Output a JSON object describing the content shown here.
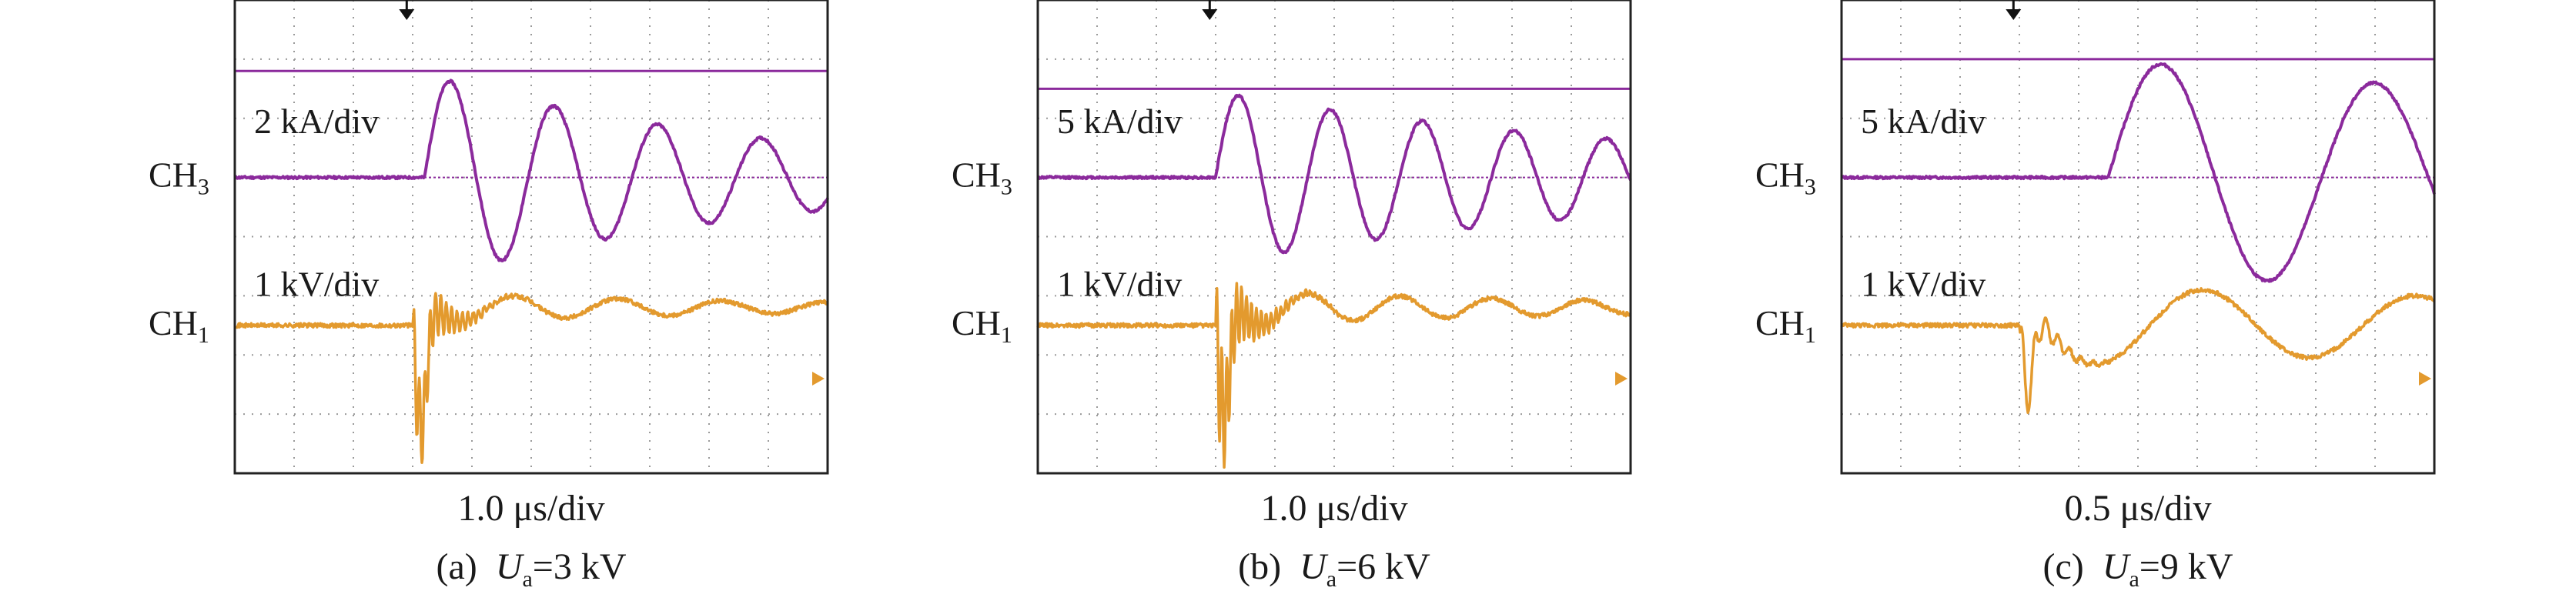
{
  "colors": {
    "ch3": "#8b2a9c",
    "ch1": "#e39a2e",
    "grid": "#9a9a9a",
    "frame": "#222222"
  },
  "chart_data": [
    {
      "type": "line",
      "panel_label": "(a)",
      "caption_var": "U",
      "caption_sub": "a",
      "caption_value": "=3 kV",
      "time_scale": "1.0 μs/div",
      "grid_divisions": {
        "x": 10,
        "y": 8
      },
      "grid": true,
      "series": [
        {
          "name": "CH",
          "name_sub": "3",
          "scale_label": "2 kA/div",
          "baseline_div": 5.0,
          "start_div": 3.2,
          "settled_div": 0.0,
          "first_peak_div": 1.75,
          "period_div": 1.75,
          "decay_per_div": 0.17,
          "cursor_level_div": 6.8
        },
        {
          "name": "CH",
          "name_sub": "1",
          "scale_label": "1 kV/div",
          "baseline_div": 2.5,
          "start_div": 3.0,
          "settled_div": 0.3,
          "first_dip_div": -1.9,
          "ringing_div": 0.9,
          "ringing_freq_per_div": 11,
          "oscillation_amp_div": 0.25,
          "period_div": 1.75,
          "decay_per_div": 0.15,
          "ground_marker_div": 1.6
        }
      ]
    },
    {
      "type": "line",
      "panel_label": "(b)",
      "caption_var": "U",
      "caption_sub": "a",
      "caption_value": "=6 kV",
      "time_scale": "1.0 μs/div",
      "grid_divisions": {
        "x": 10,
        "y": 8
      },
      "grid": true,
      "series": [
        {
          "name": "CH",
          "name_sub": "3",
          "scale_label": "5 kA/div",
          "baseline_div": 5.0,
          "start_div": 3.0,
          "settled_div": 0.0,
          "first_peak_div": 1.45,
          "period_div": 1.55,
          "decay_per_div": 0.12,
          "cursor_level_div": 6.5
        },
        {
          "name": "CH",
          "name_sub": "1",
          "scale_label": "1 kV/div",
          "baseline_div": 2.5,
          "start_div": 3.0,
          "settled_div": 0.3,
          "first_dip_div": -1.7,
          "ringing_div": 1.2,
          "ringing_freq_per_div": 12,
          "oscillation_amp_div": 0.3,
          "period_div": 1.55,
          "decay_per_div": 0.14,
          "ground_marker_div": 1.6
        }
      ]
    },
    {
      "type": "line",
      "panel_label": "(c)",
      "caption_var": "U",
      "caption_sub": "a",
      "caption_value": "=9 kV",
      "time_scale": "0.5 μs/div",
      "grid_divisions": {
        "x": 10,
        "y": 8
      },
      "grid": true,
      "series": [
        {
          "name": "CH",
          "name_sub": "3",
          "scale_label": "5 kA/div",
          "baseline_div": 5.0,
          "start_div": 4.5,
          "settled_div": 0.0,
          "first_peak_div": 2.0,
          "period_div": 3.6,
          "decay_per_div": 0.05,
          "cursor_level_div": 7.0
        },
        {
          "name": "CH",
          "name_sub": "1",
          "scale_label": "1 kV/div",
          "baseline_div": 2.5,
          "start_div": 3.0,
          "settled_div": 0.0,
          "first_dip_div": -1.2,
          "ringing_div": 0.5,
          "ringing_freq_per_div": 5,
          "oscillation_amp_div": 0.7,
          "period_div": 3.6,
          "decay_per_div": 0.05,
          "ground_marker_div": 1.6
        }
      ]
    }
  ]
}
